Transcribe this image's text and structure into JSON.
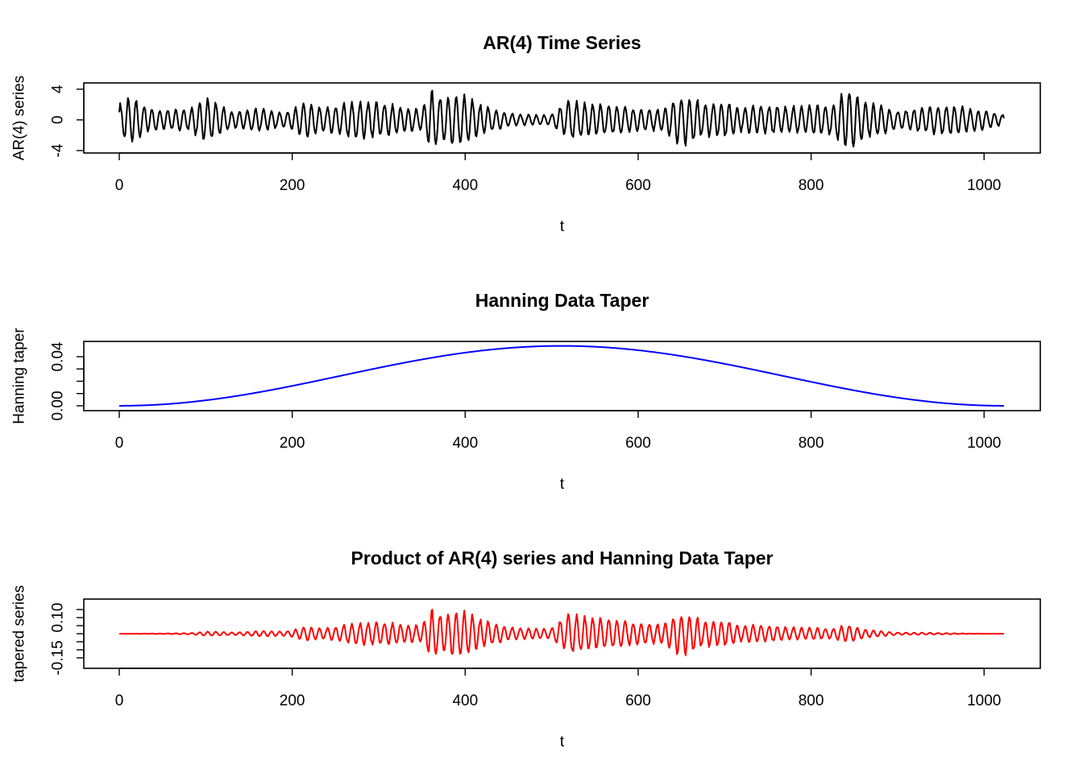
{
  "chart_data": [
    {
      "type": "line",
      "title": "AR(4) Time Series",
      "xlabel": "t",
      "ylabel": "AR(4) series",
      "xlim": [
        0,
        1024
      ],
      "ylim": [
        -4,
        4.5
      ],
      "xticks": [
        0,
        200,
        400,
        600,
        800,
        1000
      ],
      "xtick_labels": [
        "0",
        "200",
        "400",
        "600",
        "800",
        "1000"
      ],
      "yticks": [
        -4,
        0,
        4
      ],
      "ytick_labels": [
        "-4",
        "0",
        "4"
      ],
      "color": "#000000",
      "series": [
        {
          "n": 1024,
          "period": 9.3,
          "envelope_t": [
            0,
            10,
            20,
            35,
            50,
            80,
            100,
            110,
            130,
            160,
            190,
            220,
            240,
            270,
            300,
            330,
            350,
            360,
            375,
            395,
            420,
            450,
            480,
            500,
            520,
            545,
            570,
            600,
            630,
            645,
            660,
            675,
            700,
            720,
            740,
            770,
            800,
            825,
            845,
            860,
            880,
            900,
            930,
            960,
            1000,
            1024
          ],
          "envelope_amp": [
            1.9,
            2.6,
            2.5,
            1.4,
            1.2,
            1.3,
            2.6,
            2.4,
            1.0,
            1.4,
            0.9,
            2.2,
            1.5,
            2.3,
            2.1,
            1.6,
            1.2,
            3.7,
            2.8,
            3.3,
            1.8,
            0.8,
            0.6,
            0.6,
            2.5,
            2.0,
            1.8,
            1.3,
            1.4,
            2.9,
            3.0,
            2.0,
            2.2,
            1.4,
            1.8,
            1.6,
            1.8,
            2.0,
            4.1,
            2.2,
            1.9,
            1.0,
            1.6,
            1.8,
            1.2,
            0.6
          ]
        }
      ]
    },
    {
      "type": "line",
      "title": "Hanning Data Taper",
      "xlabel": "t",
      "ylabel": "Hanning taper",
      "xlim": [
        0,
        1024
      ],
      "ylim": [
        -0.002,
        0.0505
      ],
      "xticks": [
        0,
        200,
        400,
        600,
        800,
        1000
      ],
      "xtick_labels": [
        "0",
        "200",
        "400",
        "600",
        "800",
        "1000"
      ],
      "yticks": [
        0,
        0.01,
        0.02,
        0.03,
        0.04
      ],
      "ytick_labels": [
        "0.00",
        "",
        "",
        "",
        "0.04"
      ],
      "color": "#0000ff",
      "series": [
        {
          "n": 1024,
          "peak": 0.0488
        }
      ]
    },
    {
      "type": "line",
      "title": "Product of AR(4) series and Hanning Data Taper",
      "xlabel": "t",
      "ylabel": "tapered series",
      "xlim": [
        0,
        1024
      ],
      "ylim": [
        -0.2,
        0.2
      ],
      "xticks": [
        0,
        200,
        400,
        600,
        800,
        1000
      ],
      "xtick_labels": [
        "0",
        "200",
        "400",
        "600",
        "800",
        "1000"
      ],
      "yticks": [
        -0.15,
        -0.1,
        -0.05,
        0,
        0.05,
        0.1,
        0.15
      ],
      "ytick_labels": [
        "-0.15",
        "",
        "",
        "",
        "",
        "0.10",
        ""
      ],
      "color": "#ff0000",
      "series": [
        {
          "n": 1024,
          "source": "product"
        }
      ]
    }
  ]
}
